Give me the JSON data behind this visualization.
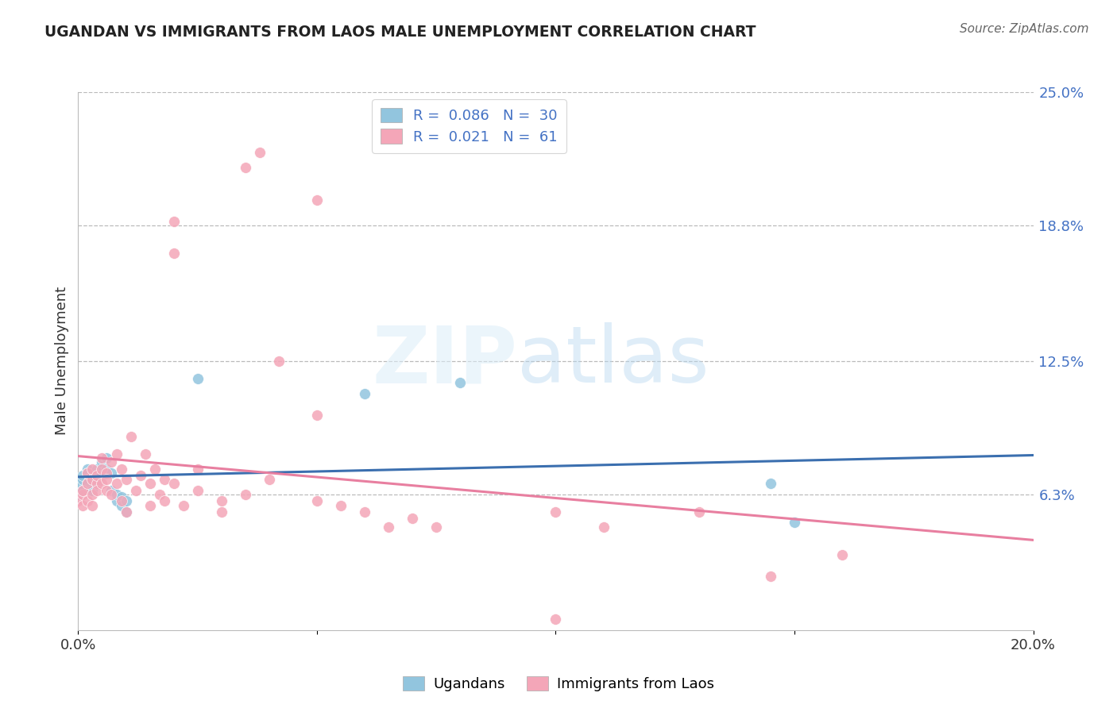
{
  "title": "UGANDAN VS IMMIGRANTS FROM LAOS MALE UNEMPLOYMENT CORRELATION CHART",
  "source": "Source: ZipAtlas.com",
  "ylabel": "Male Unemployment",
  "xlim": [
    0.0,
    0.2
  ],
  "ylim": [
    0.0,
    0.25
  ],
  "ytick_labels_right": [
    "25.0%",
    "18.8%",
    "12.5%",
    "6.3%"
  ],
  "ytick_positions_right": [
    0.25,
    0.188,
    0.125,
    0.063
  ],
  "blue_color": "#92c5de",
  "pink_color": "#f4a6b8",
  "blue_line_color": "#3b6faf",
  "pink_line_color": "#e87fa0",
  "ugandan_points": [
    [
      0.0,
      0.063
    ],
    [
      0.0,
      0.068
    ],
    [
      0.001,
      0.07
    ],
    [
      0.001,
      0.072
    ],
    [
      0.001,
      0.065
    ],
    [
      0.002,
      0.075
    ],
    [
      0.002,
      0.068
    ],
    [
      0.002,
      0.073
    ],
    [
      0.003,
      0.07
    ],
    [
      0.003,
      0.065
    ],
    [
      0.003,
      0.072
    ],
    [
      0.004,
      0.075
    ],
    [
      0.004,
      0.068
    ],
    [
      0.005,
      0.078
    ],
    [
      0.005,
      0.072
    ],
    [
      0.006,
      0.08
    ],
    [
      0.006,
      0.075
    ],
    [
      0.007,
      0.073
    ],
    [
      0.007,
      0.065
    ],
    [
      0.008,
      0.06
    ],
    [
      0.008,
      0.063
    ],
    [
      0.009,
      0.062
    ],
    [
      0.009,
      0.058
    ],
    [
      0.01,
      0.06
    ],
    [
      0.01,
      0.055
    ],
    [
      0.025,
      0.117
    ],
    [
      0.06,
      0.11
    ],
    [
      0.08,
      0.115
    ],
    [
      0.145,
      0.068
    ],
    [
      0.15,
      0.05
    ]
  ],
  "laos_points": [
    [
      0.0,
      0.06
    ],
    [
      0.001,
      0.063
    ],
    [
      0.001,
      0.058
    ],
    [
      0.001,
      0.065
    ],
    [
      0.002,
      0.068
    ],
    [
      0.002,
      0.073
    ],
    [
      0.002,
      0.06
    ],
    [
      0.003,
      0.075
    ],
    [
      0.003,
      0.07
    ],
    [
      0.003,
      0.063
    ],
    [
      0.003,
      0.058
    ],
    [
      0.004,
      0.068
    ],
    [
      0.004,
      0.072
    ],
    [
      0.004,
      0.065
    ],
    [
      0.005,
      0.08
    ],
    [
      0.005,
      0.075
    ],
    [
      0.005,
      0.068
    ],
    [
      0.006,
      0.073
    ],
    [
      0.006,
      0.065
    ],
    [
      0.006,
      0.07
    ],
    [
      0.007,
      0.078
    ],
    [
      0.007,
      0.063
    ],
    [
      0.008,
      0.082
    ],
    [
      0.008,
      0.068
    ],
    [
      0.009,
      0.075
    ],
    [
      0.009,
      0.06
    ],
    [
      0.01,
      0.07
    ],
    [
      0.01,
      0.055
    ],
    [
      0.011,
      0.09
    ],
    [
      0.012,
      0.065
    ],
    [
      0.013,
      0.072
    ],
    [
      0.014,
      0.082
    ],
    [
      0.015,
      0.058
    ],
    [
      0.015,
      0.068
    ],
    [
      0.016,
      0.075
    ],
    [
      0.017,
      0.063
    ],
    [
      0.018,
      0.06
    ],
    [
      0.018,
      0.07
    ],
    [
      0.02,
      0.068
    ],
    [
      0.022,
      0.058
    ],
    [
      0.025,
      0.065
    ],
    [
      0.025,
      0.075
    ],
    [
      0.03,
      0.06
    ],
    [
      0.03,
      0.055
    ],
    [
      0.035,
      0.063
    ],
    [
      0.04,
      0.07
    ],
    [
      0.042,
      0.125
    ],
    [
      0.05,
      0.1
    ],
    [
      0.05,
      0.06
    ],
    [
      0.055,
      0.058
    ],
    [
      0.06,
      0.055
    ],
    [
      0.065,
      0.048
    ],
    [
      0.07,
      0.052
    ],
    [
      0.075,
      0.048
    ],
    [
      0.1,
      0.005
    ],
    [
      0.1,
      0.055
    ],
    [
      0.11,
      0.048
    ],
    [
      0.13,
      0.055
    ],
    [
      0.145,
      0.025
    ],
    [
      0.16,
      0.035
    ],
    [
      0.035,
      0.215
    ]
  ],
  "laos_high_points": [
    [
      0.038,
      0.222
    ],
    [
      0.05,
      0.2
    ],
    [
      0.02,
      0.19
    ],
    [
      0.02,
      0.175
    ]
  ]
}
